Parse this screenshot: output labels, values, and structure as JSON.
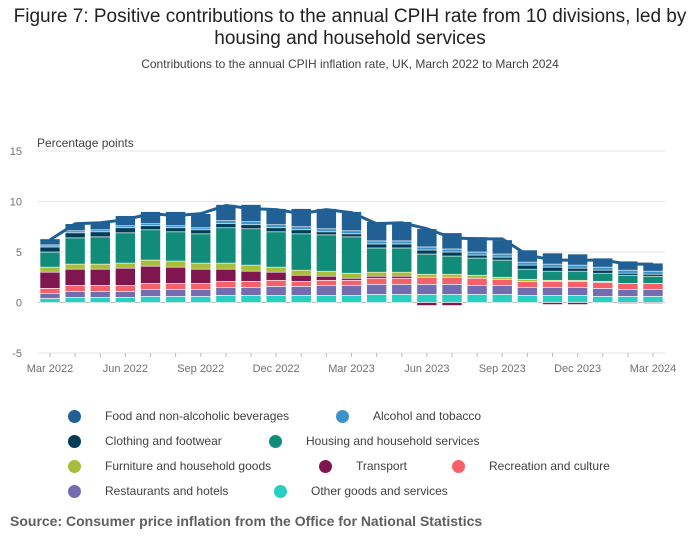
{
  "chart_data": {
    "type": "bar",
    "title": "Figure 7: Positive contributions to the annual CPIH rate from 10 divisions, led by housing and household services",
    "subtitle": "Contributions to the annual CPIH inflation rate, UK, March 2022 to March 2024",
    "ylabel": "Percentage points",
    "ylim": [
      -5,
      15
    ],
    "yticks": [
      -5,
      0,
      5,
      10,
      15
    ],
    "xtick_labels": [
      "Mar 2022",
      "Jun 2022",
      "Sep 2022",
      "Dec 2022",
      "Mar 2023",
      "Jun 2023",
      "Sep 2023",
      "Dec 2023",
      "Mar 2024"
    ],
    "xtick_index": [
      0,
      3,
      6,
      9,
      12,
      15,
      18,
      21,
      24
    ],
    "stacked": true,
    "grid": true,
    "legend_position": "bottom",
    "categories": [
      "Mar 2022",
      "Apr 2022",
      "May 2022",
      "Jun 2022",
      "Jul 2022",
      "Aug 2022",
      "Sep 2022",
      "Oct 2022",
      "Nov 2022",
      "Dec 2022",
      "Jan 2023",
      "Feb 2023",
      "Mar 2023",
      "Apr 2023",
      "May 2023",
      "Jun 2023",
      "Jul 2023",
      "Aug 2023",
      "Sep 2023",
      "Oct 2023",
      "Nov 2023",
      "Dec 2023",
      "Jan 2024",
      "Feb 2024",
      "Mar 2024"
    ],
    "series": [
      {
        "name": "Other goods and services",
        "color": "#27d0c0",
        "values": [
          0.4,
          0.5,
          0.5,
          0.5,
          0.6,
          0.6,
          0.6,
          0.7,
          0.7,
          0.7,
          0.7,
          0.7,
          0.7,
          0.8,
          0.8,
          0.8,
          0.8,
          0.8,
          0.8,
          0.7,
          0.7,
          0.7,
          0.6,
          0.6,
          0.6
        ]
      },
      {
        "name": "Restaurants and hotels",
        "color": "#746cb1",
        "values": [
          0.5,
          0.6,
          0.6,
          0.6,
          0.7,
          0.7,
          0.7,
          0.8,
          0.8,
          0.9,
          0.9,
          1.0,
          1.0,
          1.0,
          1.0,
          1.0,
          1.0,
          0.9,
          0.9,
          0.8,
          0.8,
          0.8,
          0.8,
          0.7,
          0.7
        ]
      },
      {
        "name": "Recreation and culture",
        "color": "#f66068",
        "values": [
          0.5,
          0.6,
          0.6,
          0.6,
          0.6,
          0.6,
          0.6,
          0.6,
          0.6,
          0.6,
          0.5,
          0.5,
          0.5,
          0.6,
          0.6,
          0.7,
          0.7,
          0.7,
          0.6,
          0.6,
          0.6,
          0.6,
          0.6,
          0.6,
          0.6
        ]
      },
      {
        "name": "Transport",
        "color": "#801650",
        "values": [
          1.6,
          1.6,
          1.6,
          1.7,
          1.7,
          1.6,
          1.4,
          1.2,
          1.0,
          0.8,
          0.6,
          0.4,
          0.2,
          0.2,
          0.2,
          -0.3,
          -0.3,
          0.0,
          0.0,
          0.0,
          -0.2,
          -0.2,
          0.0,
          -0.1,
          -0.1
        ]
      },
      {
        "name": "Furniture and household goods",
        "color": "#a8bd3a",
        "values": [
          0.5,
          0.5,
          0.5,
          0.5,
          0.6,
          0.6,
          0.6,
          0.6,
          0.6,
          0.5,
          0.5,
          0.5,
          0.5,
          0.4,
          0.4,
          0.3,
          0.3,
          0.3,
          0.2,
          0.2,
          0.1,
          0.1,
          0.1,
          0.0,
          0.0
        ]
      },
      {
        "name": "Housing and household services",
        "color": "#118c7b",
        "values": [
          1.5,
          2.6,
          2.7,
          3.0,
          3.0,
          2.9,
          2.9,
          3.5,
          3.6,
          3.5,
          3.6,
          3.6,
          3.6,
          2.4,
          2.4,
          2.0,
          1.8,
          1.7,
          1.7,
          1.0,
          0.9,
          0.9,
          0.8,
          0.8,
          0.7
        ]
      },
      {
        "name": "Clothing and footwear",
        "color": "#003c57",
        "values": [
          0.5,
          0.5,
          0.5,
          0.5,
          0.4,
          0.4,
          0.4,
          0.4,
          0.4,
          0.4,
          0.4,
          0.3,
          0.3,
          0.4,
          0.4,
          0.4,
          0.4,
          0.3,
          0.3,
          0.4,
          0.4,
          0.3,
          0.3,
          0.2,
          0.2
        ]
      },
      {
        "name": "Alcohol and tobacco",
        "color": "#3b93c8",
        "values": [
          0.2,
          0.2,
          0.2,
          0.2,
          0.2,
          0.2,
          0.2,
          0.3,
          0.3,
          0.3,
          0.3,
          0.3,
          0.3,
          0.3,
          0.3,
          0.3,
          0.3,
          0.3,
          0.3,
          0.3,
          0.3,
          0.3,
          0.3,
          0.3,
          0.3
        ]
      },
      {
        "name": "Food and non-alcoholic beverages",
        "color": "#206095",
        "values": [
          0.6,
          0.7,
          0.8,
          1.0,
          1.2,
          1.4,
          1.4,
          1.6,
          1.7,
          1.6,
          1.8,
          2.0,
          1.9,
          1.9,
          1.9,
          1.8,
          1.6,
          1.5,
          1.4,
          1.2,
          1.1,
          1.1,
          0.9,
          0.9,
          0.8
        ]
      }
    ],
    "total_line": {
      "name": "CPIH",
      "color": "#206095",
      "values": [
        6.2,
        7.8,
        7.9,
        8.2,
        8.8,
        8.6,
        8.8,
        9.6,
        9.3,
        9.2,
        8.8,
        9.2,
        8.9,
        7.8,
        7.9,
        7.3,
        6.4,
        6.3,
        6.3,
        4.7,
        4.2,
        4.2,
        4.2,
        3.8,
        3.8
      ]
    }
  },
  "legend": [
    {
      "label": "Food and non-alcoholic beverages",
      "color": "#206095"
    },
    {
      "label": "Alcohol and tobacco",
      "color": "#3b93c8"
    },
    {
      "label": "Clothing and footwear",
      "color": "#003c57"
    },
    {
      "label": "Housing and household services",
      "color": "#118c7b"
    },
    {
      "label": "Furniture and household goods",
      "color": "#a8bd3a"
    },
    {
      "label": "Transport",
      "color": "#801650"
    },
    {
      "label": "Recreation and culture",
      "color": "#f66068"
    },
    {
      "label": "Restaurants and hotels",
      "color": "#746cb1"
    },
    {
      "label": "Other goods and services",
      "color": "#27d0c0"
    }
  ],
  "source": "Source: Consumer price inflation from the Office for National Statistics"
}
